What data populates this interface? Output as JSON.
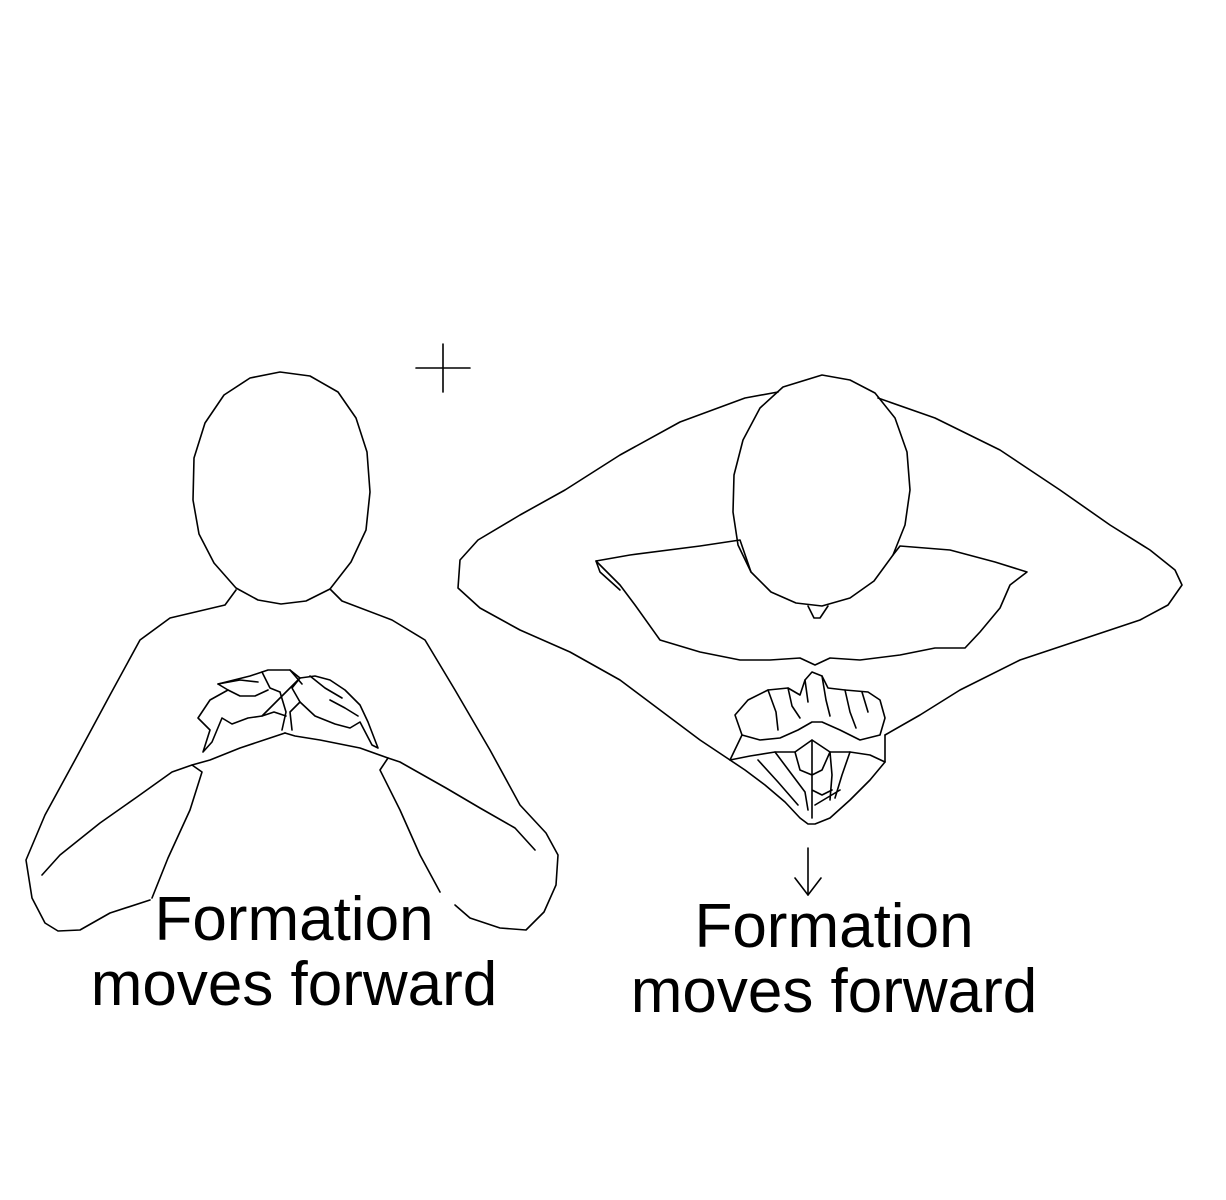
{
  "figures": [
    {
      "view": "front",
      "caption": [
        "Formation",
        "moves forward"
      ]
    },
    {
      "view": "top",
      "caption": [
        "Formation",
        "moves forward"
      ]
    }
  ],
  "symbols": {
    "crosshair": "plus-mark",
    "movement_arrow": "down-arrow"
  },
  "colors": {
    "line": "#000000",
    "background": "#ffffff"
  }
}
